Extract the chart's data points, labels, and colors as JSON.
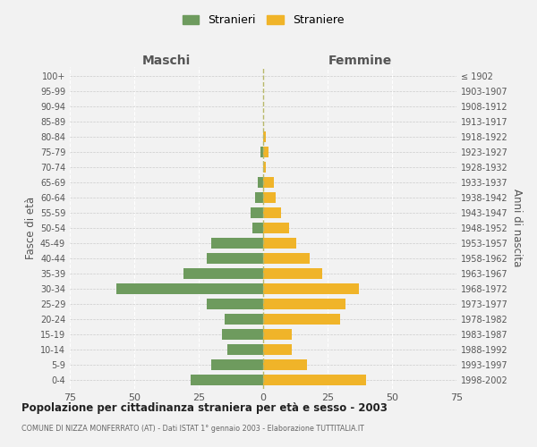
{
  "age_groups": [
    "0-4",
    "5-9",
    "10-14",
    "15-19",
    "20-24",
    "25-29",
    "30-34",
    "35-39",
    "40-44",
    "45-49",
    "50-54",
    "55-59",
    "60-64",
    "65-69",
    "70-74",
    "75-79",
    "80-84",
    "85-89",
    "90-94",
    "95-99",
    "100+"
  ],
  "birth_years": [
    "1998-2002",
    "1993-1997",
    "1988-1992",
    "1983-1987",
    "1978-1982",
    "1973-1977",
    "1968-1972",
    "1963-1967",
    "1958-1962",
    "1953-1957",
    "1948-1952",
    "1943-1947",
    "1938-1942",
    "1933-1937",
    "1928-1932",
    "1923-1927",
    "1918-1922",
    "1913-1917",
    "1908-1912",
    "1903-1907",
    "≤ 1902"
  ],
  "maschi": [
    28,
    20,
    14,
    16,
    15,
    22,
    57,
    31,
    22,
    20,
    4,
    5,
    3,
    2,
    0,
    1,
    0,
    0,
    0,
    0,
    0
  ],
  "femmine": [
    40,
    17,
    11,
    11,
    30,
    32,
    37,
    23,
    18,
    13,
    10,
    7,
    5,
    4,
    1,
    2,
    1,
    0,
    0,
    0,
    0
  ],
  "maschi_color": "#6e9b5e",
  "femmine_color": "#f0b429",
  "background_color": "#f2f2f2",
  "bar_height": 0.72,
  "xlim": 75,
  "title": "Popolazione per cittadinanza straniera per età e sesso - 2003",
  "subtitle": "COMUNE DI NIZZA MONFERRATO (AT) - Dati ISTAT 1° gennaio 2003 - Elaborazione TUTTITALIA.IT",
  "xlabel_left": "Maschi",
  "xlabel_right": "Femmine",
  "ylabel_left": "Fasce di età",
  "ylabel_right": "Anni di nascita",
  "legend_maschi": "Stranieri",
  "legend_femmine": "Straniere"
}
